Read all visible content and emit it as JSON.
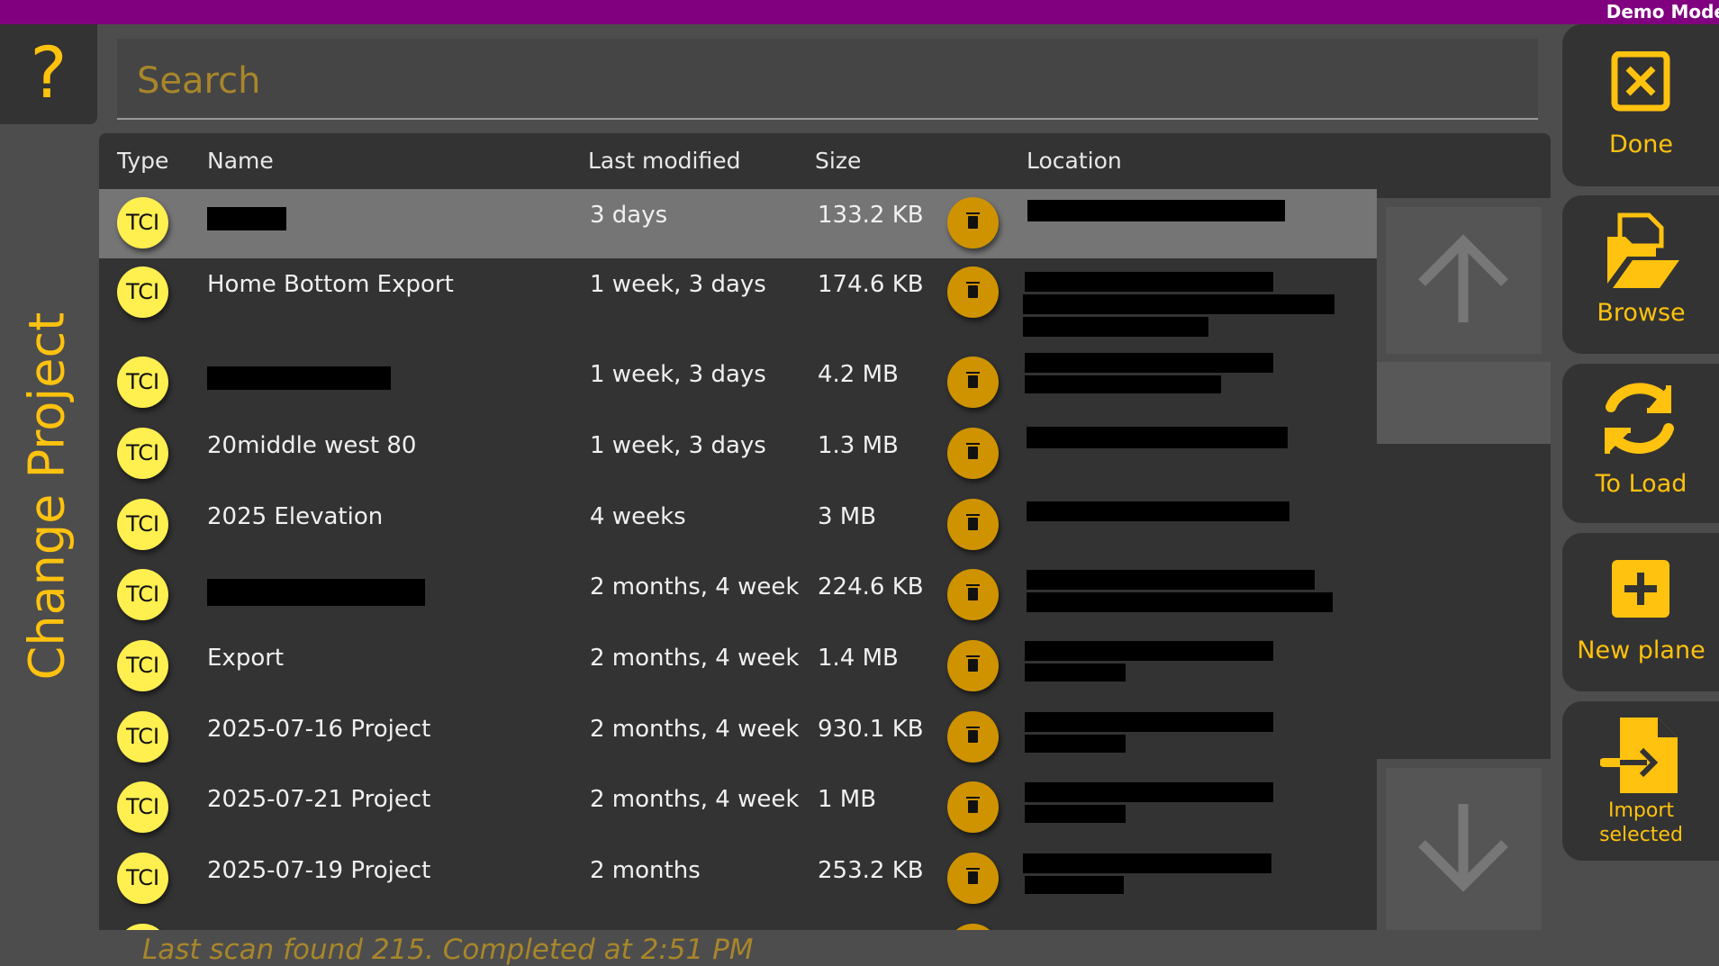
{
  "topbar": {
    "mode": "Demo Mode"
  },
  "sidebar": {
    "help": "?",
    "change_project": "Change Project"
  },
  "search": {
    "placeholder": "Search"
  },
  "table": {
    "headers": {
      "type": "Type",
      "name": "Name",
      "modified": "Last modified",
      "size": "Size",
      "location": "Location"
    },
    "rows": [
      {
        "type": "TCI",
        "name": "",
        "modified": "3 days",
        "size": "133.2 KB",
        "selected": true
      },
      {
        "type": "TCI",
        "name": "Home Bottom Export",
        "modified": "1 week, 3 days",
        "size": "174.6 KB"
      },
      {
        "type": "TCI",
        "name": "",
        "modified": "1 week, 3 days",
        "size": "4.2 MB"
      },
      {
        "type": "TCI",
        "name": "20middle west 80",
        "modified": "1 week, 3 days",
        "size": "1.3 MB"
      },
      {
        "type": "TCI",
        "name": "2025 Elevation",
        "modified": "4 weeks",
        "size": "3 MB"
      },
      {
        "type": "TCI",
        "name": "",
        "modified": "2 months, 4 week",
        "size": "224.6 KB"
      },
      {
        "type": "TCI",
        "name": "Export",
        "modified": "2 months, 4 week",
        "size": "1.4 MB"
      },
      {
        "type": "TCI",
        "name": "2025-07-16 Project",
        "modified": "2 months, 4 week",
        "size": "930.1 KB"
      },
      {
        "type": "TCI",
        "name": "2025-07-21 Project",
        "modified": "2 months, 4 week",
        "size": "1 MB"
      },
      {
        "type": "TCI",
        "name": "2025-07-19 Project",
        "modified": "2 months",
        "size": "253.2 KB"
      },
      {
        "type": "TCI",
        "name": "",
        "modified": "",
        "size": ""
      }
    ]
  },
  "actions": {
    "done": "Done",
    "browse": "Browse",
    "to_load": "To Load",
    "new_plane": "New plane",
    "import_line1": "Import",
    "import_line2": "selected"
  },
  "status": "Last scan found 215. Completed at 2:51 PM",
  "colors": {
    "accent": "#ffc20e",
    "topbar": "#800080",
    "badge": "#ffef4f",
    "delete": "#cf9300"
  },
  "icons": {
    "help": "question-mark-icon",
    "done": "close-box-icon",
    "browse": "folder-open-icon",
    "to_load": "sync-icon",
    "new_plane": "plus-box-icon",
    "import": "file-import-icon",
    "delete": "trash-icon",
    "scroll_up": "arrow-up-icon",
    "scroll_down": "arrow-down-icon"
  }
}
